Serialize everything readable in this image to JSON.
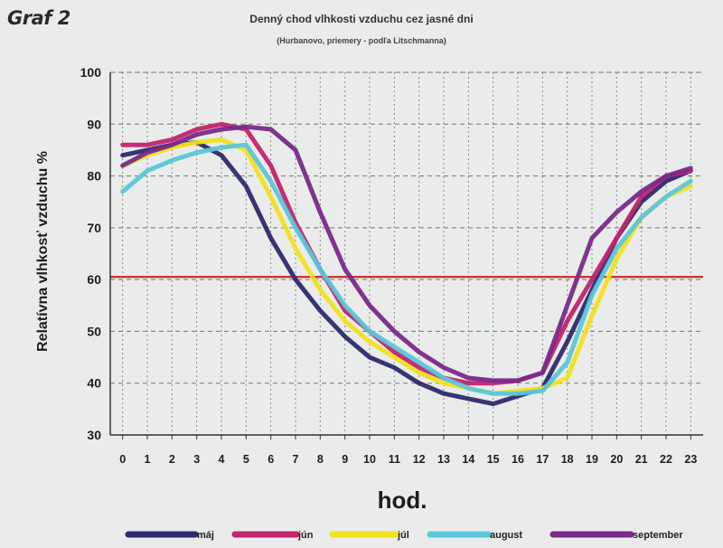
{
  "figure_label": "Graf 2",
  "chart_data": {
    "type": "line",
    "title": "Denný chod vlhkosti vzduchu cez jasné dni",
    "subtitle": "(Hurbanovo, priemery - podľa Litschmanna)",
    "xlabel": "hod.",
    "ylabel": "Relatívna vlhkosť vzduchu %",
    "x": [
      0,
      1,
      2,
      3,
      4,
      5,
      6,
      7,
      8,
      9,
      10,
      11,
      12,
      13,
      14,
      15,
      16,
      17,
      18,
      19,
      20,
      21,
      22,
      23
    ],
    "x_ticks": [
      "0",
      "1",
      "2",
      "3",
      "4",
      "5",
      "6",
      "7",
      "8",
      "9",
      "10",
      "11",
      "12",
      "13",
      "14",
      "15",
      "16",
      "17",
      "18",
      "19",
      "20",
      "21",
      "22",
      "23"
    ],
    "y_ticks": [
      30,
      40,
      50,
      60,
      70,
      80,
      90,
      100
    ],
    "ylim": [
      30,
      100
    ],
    "xlim": [
      -0.5,
      23.5
    ],
    "grid": "dotted vertical, dashed horizontal",
    "reference_line": {
      "y": 60.5,
      "color": "#cc2a2a"
    },
    "legend_position": "bottom",
    "series": [
      {
        "name": "máj",
        "color": "#2e2a6e",
        "values": [
          84,
          85,
          86,
          86.5,
          84,
          78,
          68,
          60,
          54,
          49,
          45,
          43,
          40,
          38,
          37,
          36,
          37.5,
          39,
          48,
          58,
          68,
          75,
          79,
          81
        ]
      },
      {
        "name": "jún",
        "color": "#c2246e",
        "values": [
          86,
          86,
          87,
          89,
          90,
          89,
          82,
          71,
          62,
          54,
          50,
          46,
          43,
          41,
          40,
          40,
          40.5,
          42,
          52,
          60,
          68,
          76,
          80,
          81
        ]
      },
      {
        "name": "júl",
        "color": "#f3e01e",
        "values": [
          82,
          84,
          85.5,
          86.5,
          87,
          85,
          76,
          66,
          58,
          52,
          48,
          45,
          42,
          40,
          39,
          38,
          38.5,
          39,
          41,
          53,
          64,
          72,
          76,
          78
        ]
      },
      {
        "name": "august",
        "color": "#5bc6d9",
        "values": [
          77,
          81,
          83,
          84.5,
          85.5,
          86,
          79,
          70,
          62,
          55,
          50,
          47,
          44,
          41,
          39,
          38,
          38,
          38.5,
          44,
          57,
          66,
          72,
          76,
          79
        ]
      },
      {
        "name": "september",
        "color": "#7a2a8a",
        "values": [
          82,
          84.5,
          86,
          88,
          89,
          89.5,
          89,
          85,
          73,
          62,
          55,
          50,
          46,
          43,
          41,
          40.5,
          40.5,
          42,
          55,
          68,
          73,
          77,
          80,
          81.5
        ]
      }
    ]
  }
}
